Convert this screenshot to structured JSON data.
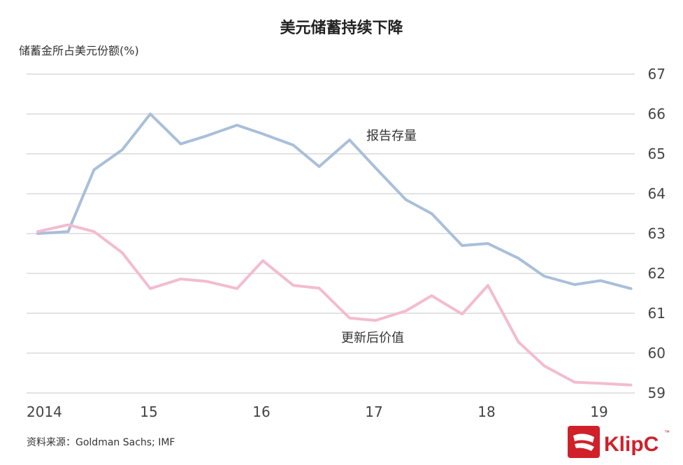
{
  "chart_data": {
    "type": "line",
    "title": "美元储蓄持续下降",
    "ylabel": "储蓄金所占美元份额(%)",
    "source": "资料来源：Goldman Sachs; IMF",
    "ylim": [
      59,
      67
    ],
    "xlim": [
      2014,
      2019.3
    ],
    "yticks": [
      "59",
      "60",
      "61",
      "62",
      "63",
      "64",
      "65",
      "66",
      "67"
    ],
    "xticks": [
      {
        "label": "2014",
        "x": 2014
      },
      {
        "label": "15",
        "x": 2015
      },
      {
        "label": "16",
        "x": 2016
      },
      {
        "label": "17",
        "x": 2017
      },
      {
        "label": "18",
        "x": 2018
      },
      {
        "label": "19",
        "x": 2019
      }
    ],
    "series": [
      {
        "name": "报告存量",
        "color": "#a9bfd9",
        "x": [
          2014.0,
          2014.27,
          2014.5,
          2014.75,
          2015.0,
          2015.27,
          2015.5,
          2015.77,
          2016.0,
          2016.27,
          2016.5,
          2016.77,
          2017.0,
          2017.27,
          2017.5,
          2017.77,
          2018.0,
          2018.27,
          2018.5,
          2018.77,
          2019.0,
          2019.27
        ],
        "values": [
          63.0,
          63.05,
          64.6,
          65.1,
          66.0,
          65.25,
          65.45,
          65.72,
          65.5,
          65.22,
          64.68,
          65.35,
          64.65,
          63.85,
          63.5,
          62.7,
          62.75,
          62.38,
          61.93,
          61.72,
          61.82,
          61.62
        ]
      },
      {
        "name": "更新后价值",
        "color": "#f3bcd0",
        "x": [
          2014.0,
          2014.27,
          2014.5,
          2014.75,
          2015.0,
          2015.27,
          2015.5,
          2015.77,
          2016.0,
          2016.27,
          2016.5,
          2016.77,
          2017.0,
          2017.27,
          2017.5,
          2017.77,
          2018.0,
          2018.27,
          2018.5,
          2018.77,
          2019.0,
          2019.27
        ],
        "values": [
          63.05,
          63.22,
          63.05,
          62.52,
          61.62,
          61.86,
          61.8,
          61.62,
          62.32,
          61.7,
          61.63,
          60.88,
          60.82,
          61.06,
          61.44,
          60.98,
          61.7,
          60.28,
          59.68,
          59.27,
          59.24,
          59.2
        ]
      }
    ],
    "annotations": [
      {
        "text": "报告存量",
        "series": "报告存量"
      },
      {
        "text": "更新后价值",
        "series": "更新后价值"
      }
    ],
    "grid": true
  },
  "logo": {
    "text": "KlipC",
    "trademark": "™",
    "color": "#d0202a"
  }
}
